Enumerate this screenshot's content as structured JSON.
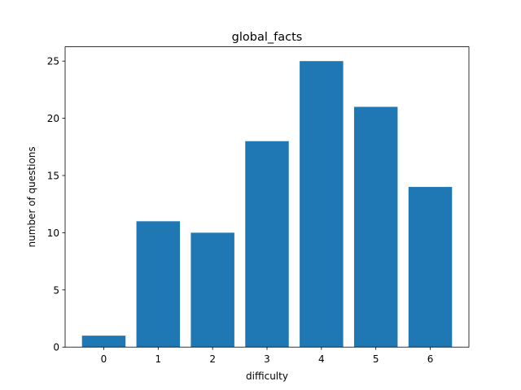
{
  "chart_data": {
    "type": "bar",
    "title": "global_facts",
    "xlabel": "difficulty",
    "ylabel": "number of questions",
    "categories": [
      "0",
      "1",
      "2",
      "3",
      "4",
      "5",
      "6"
    ],
    "values": [
      1,
      11,
      10,
      18,
      25,
      21,
      14
    ],
    "ylim": [
      0,
      26.25
    ],
    "yticks": [
      0,
      5,
      10,
      15,
      20,
      25
    ],
    "bar_color": "#1f77b4",
    "grid": false,
    "legend": "none"
  }
}
